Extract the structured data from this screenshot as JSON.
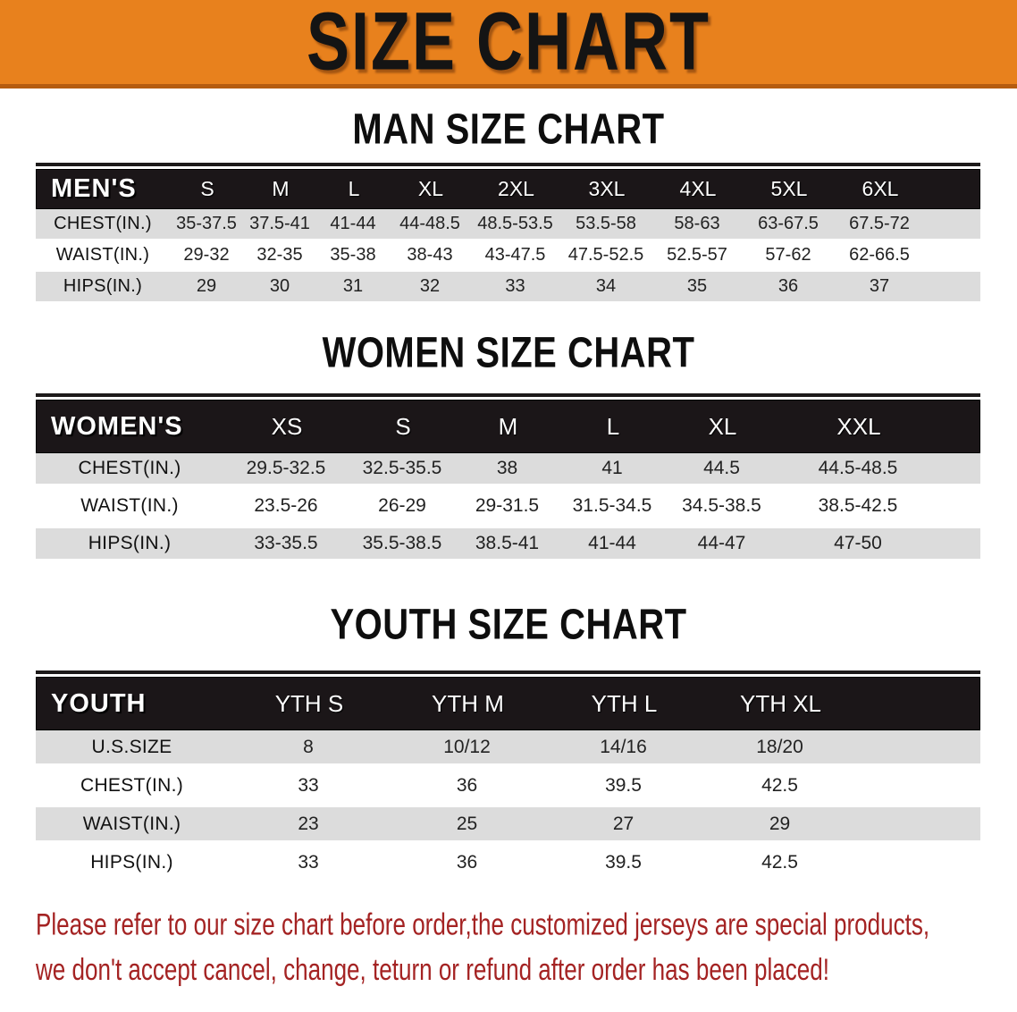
{
  "banner": {
    "title": "SIZE CHART",
    "bg_color": "#e8811d",
    "border_color": "#b55c0f"
  },
  "sections": [
    {
      "id": "men",
      "heading": "MAN SIZE CHART",
      "header_label": "MEN'S",
      "columns": [
        "S",
        "M",
        "L",
        "XL",
        "2XL",
        "3XL",
        "4XL",
        "5XL",
        "6XL"
      ],
      "rows": [
        {
          "label": "CHEST(IN.)",
          "values": [
            "35-37.5",
            "37.5-41",
            "41-44",
            "44-48.5",
            "48.5-53.5",
            "53.5-58",
            "58-63",
            "63-67.5",
            "67.5-72"
          ]
        },
        {
          "label": "WAIST(IN.)",
          "values": [
            "29-32",
            "32-35",
            "35-38",
            "38-43",
            "43-47.5",
            "47.5-52.5",
            "52.5-57",
            "57-62",
            "62-66.5"
          ]
        },
        {
          "label": "HIPS(IN.)",
          "values": [
            "29",
            "30",
            "31",
            "32",
            "33",
            "34",
            "35",
            "36",
            "37"
          ]
        }
      ]
    },
    {
      "id": "women",
      "heading": "WOMEN SIZE CHART",
      "header_label": "WOMEN'S",
      "columns": [
        "XS",
        "S",
        "M",
        "L",
        "XL",
        "XXL"
      ],
      "rows": [
        {
          "label": "CHEST(IN.)",
          "values": [
            "29.5-32.5",
            "32.5-35.5",
            "38",
            "41",
            "44.5",
            "44.5-48.5"
          ]
        },
        {
          "label": "WAIST(IN.)",
          "values": [
            "23.5-26",
            "26-29",
            "29-31.5",
            "31.5-34.5",
            "34.5-38.5",
            "38.5-42.5"
          ]
        },
        {
          "label": "HIPS(IN.)",
          "values": [
            "33-35.5",
            "35.5-38.5",
            "38.5-41",
            "41-44",
            "44-47",
            "47-50"
          ]
        }
      ]
    },
    {
      "id": "youth",
      "heading": "YOUTH SIZE CHART",
      "header_label": "YOUTH",
      "columns": [
        "YTH S",
        "YTH M",
        "YTH L",
        "YTH XL"
      ],
      "rows": [
        {
          "label": "U.S.SIZE",
          "values": [
            "8",
            "10/12",
            "14/16",
            "18/20"
          ]
        },
        {
          "label": "CHEST(IN.)",
          "values": [
            "33",
            "36",
            "39.5",
            "42.5"
          ]
        },
        {
          "label": "WAIST(IN.)",
          "values": [
            "23",
            "25",
            "27",
            "29"
          ]
        },
        {
          "label": "HIPS(IN.)",
          "values": [
            "33",
            "36",
            "39.5",
            "42.5"
          ]
        }
      ]
    }
  ],
  "disclaimer": {
    "line1": "Please refer to our size chart before order,the customized jerseys are special products,",
    "line2": "we don't accept cancel, change, teturn or refund after order has been placed!",
    "color": "#a42323"
  },
  "colors": {
    "header_bar": "#1b1618",
    "row_stripe": "#dcdcdc",
    "table_text": "#222222"
  }
}
